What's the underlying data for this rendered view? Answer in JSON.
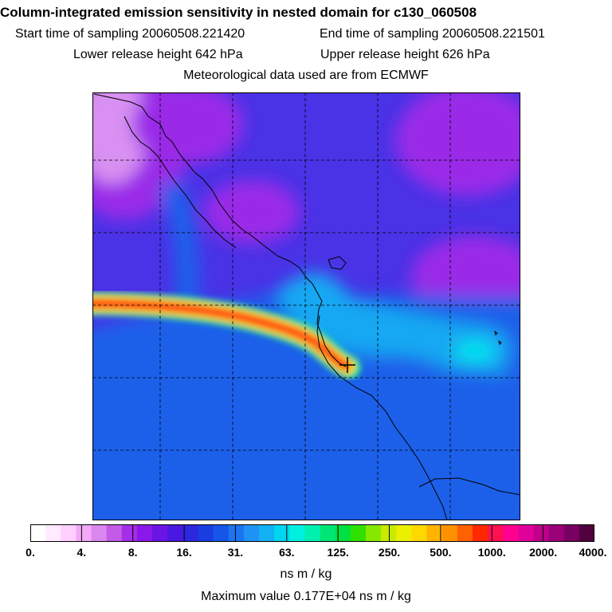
{
  "header": {
    "title": "Column-integrated emission sensitivity in nested domain for c130_060508",
    "start_label": "Start time of sampling 20060508.221420",
    "end_label": "End time of sampling 20060508.221501",
    "lower_label": "Lower release height  642 hPa",
    "upper_label": "Upper release height  626 hPa",
    "met_label": "Meteorological data used are from ECMWF"
  },
  "colorbar": {
    "ticks": [
      "0.",
      "4.",
      "8.",
      "16.",
      "31.",
      "63.",
      "125.",
      "250.",
      "500.",
      "1000.",
      "2000.",
      "4000."
    ],
    "colors": [
      "#ffffff",
      "#ffeaff",
      "#ffd0ff",
      "#f2a9f7",
      "#dc86f0",
      "#c35ae8",
      "#a62ee8",
      "#8a18e8",
      "#6a14e6",
      "#4a18e0",
      "#2d28de",
      "#1a3ce0",
      "#1556e8",
      "#1c74f0",
      "#1f92f5",
      "#13b0f4",
      "#00d6f0",
      "#00f0e0",
      "#00f0b0",
      "#00e676",
      "#00e040",
      "#30e000",
      "#86e800",
      "#c8ea00",
      "#eaf000",
      "#ffd800",
      "#ffb400",
      "#ff9000",
      "#ff6000",
      "#ff2800",
      "#ff1050",
      "#ff0090",
      "#e0009a",
      "#c0008c",
      "#9a0078",
      "#780060",
      "#520040"
    ],
    "units": "ns m / kg",
    "max_value_label": "Maximum value  0.177E+04 ns m / kg"
  },
  "map": {
    "colors": {
      "background": "#4a32e6",
      "light_violet": "#d891f2",
      "violet": "#9a2ce8",
      "blue": "#1e60ea",
      "light_blue": "#17a8f2",
      "cyan": "#00e2ee",
      "plume_green": "#10e890",
      "plume_yellow": "#ffd000",
      "plume_orange": "#ff8000",
      "plume_red": "#ff1a1a"
    },
    "release_marker": "cross-icon"
  }
}
